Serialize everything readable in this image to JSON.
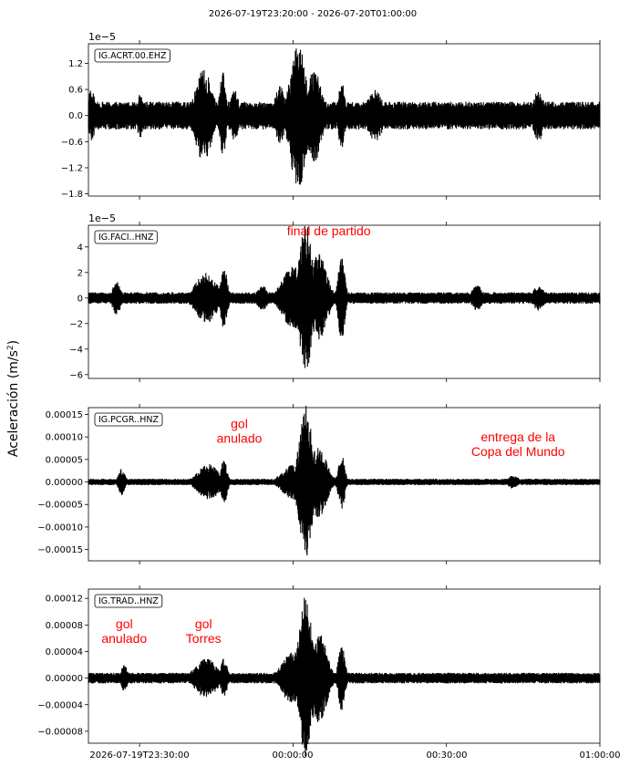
{
  "title": "2026-07-19T23:20:00  -  2026-07-20T01:00:00",
  "ylabel_main": "Aceleración (m/s",
  "ylabel_sup": "2",
  "ylabel_close": ")",
  "x_tick_labels": [
    "2026-07-19T23:30:00",
    "00:00:00",
    "00:30:00",
    "01:00:00"
  ],
  "chart_data": [
    {
      "type": "line",
      "station": "IG.ACRT.00.EHZ",
      "exponent_label": "1e−5",
      "ylim": [
        -1.85,
        1.65
      ],
      "yticks": [
        1.2,
        0.6,
        0.0,
        -0.6,
        -1.2,
        -1.8
      ],
      "ytick_labels": [
        "1.2",
        "0.6",
        "0.0",
        "−0.6",
        "−1.2",
        "−1.8"
      ],
      "xlim_minutes": [
        0,
        100
      ],
      "xticks_minutes": [
        10,
        40,
        70,
        100
      ],
      "baseline_amplitude": 0.32,
      "bursts": [
        {
          "t": 0.5,
          "peak": 0.6,
          "width": 0.8
        },
        {
          "t": 10.2,
          "peak": 0.5,
          "width": 0.8
        },
        {
          "t": 22.5,
          "peak": 1.05,
          "width": 1.6
        },
        {
          "t": 26.3,
          "peak": 1.0,
          "width": 0.6
        },
        {
          "t": 28.5,
          "peak": 0.6,
          "width": 0.8
        },
        {
          "t": 37.5,
          "peak": 0.7,
          "width": 1.0
        },
        {
          "t": 41.0,
          "peak": 1.7,
          "width": 1.5
        },
        {
          "t": 44.0,
          "peak": 1.1,
          "width": 1.5
        },
        {
          "t": 49.5,
          "peak": 0.8,
          "width": 0.6
        },
        {
          "t": 56.0,
          "peak": 0.6,
          "width": 1.5
        },
        {
          "t": 88.0,
          "peak": 0.6,
          "width": 1.0
        }
      ],
      "annotations": []
    },
    {
      "type": "line",
      "station": "IG.FACI..HNZ",
      "exponent_label": "1e−5",
      "ylim": [
        -6.3,
        5.7
      ],
      "yticks": [
        4,
        2,
        0,
        -2,
        -4,
        -6
      ],
      "ytick_labels": [
        "4",
        "2",
        "0",
        "−2",
        "−4",
        "−6"
      ],
      "xlim_minutes": [
        0,
        100
      ],
      "xticks_minutes": [
        10,
        40,
        70,
        100
      ],
      "baseline_amplitude": 0.45,
      "bursts": [
        {
          "t": 5.5,
          "peak": 1.3,
          "width": 0.8
        },
        {
          "t": 23.0,
          "peak": 2.0,
          "width": 2.0
        },
        {
          "t": 26.5,
          "peak": 2.5,
          "width": 0.6
        },
        {
          "t": 34.0,
          "peak": 1.0,
          "width": 1.0
        },
        {
          "t": 40.0,
          "peak": 2.5,
          "width": 2.0
        },
        {
          "t": 42.5,
          "peak": 5.8,
          "width": 1.2
        },
        {
          "t": 45.0,
          "peak": 3.5,
          "width": 1.5
        },
        {
          "t": 49.5,
          "peak": 3.5,
          "width": 0.6
        },
        {
          "t": 76.0,
          "peak": 1.0,
          "width": 1.0
        },
        {
          "t": 88.0,
          "peak": 1.0,
          "width": 1.0
        }
      ],
      "annotations": [
        {
          "lines": [
            "final de partido"
          ],
          "t": 47.0,
          "y": 4.9
        }
      ]
    },
    {
      "type": "line",
      "station": "IG.PCGR..HNZ",
      "exponent_label": "",
      "ylim": [
        -0.000175,
        0.000165
      ],
      "yticks": [
        0.00015,
        0.0001,
        5e-05,
        0.0,
        -5e-05,
        -0.0001,
        -0.00015
      ],
      "ytick_labels": [
        "0.00015",
        "0.00010",
        "0.00005",
        "0.00000",
        "−0.00005",
        "−0.00010",
        "−0.00015"
      ],
      "xlim_minutes": [
        0,
        100
      ],
      "xticks_minutes": [
        10,
        40,
        70,
        100
      ],
      "baseline_amplitude": 7e-06,
      "bursts": [
        {
          "t": 6.5,
          "peak": 3e-05,
          "width": 0.6
        },
        {
          "t": 23.5,
          "peak": 4e-05,
          "width": 2.0
        },
        {
          "t": 26.5,
          "peak": 5e-05,
          "width": 0.6
        },
        {
          "t": 40.0,
          "peak": 4e-05,
          "width": 2.0
        },
        {
          "t": 42.5,
          "peak": 0.00017,
          "width": 1.2
        },
        {
          "t": 45.0,
          "peak": 8e-05,
          "width": 1.5
        },
        {
          "t": 49.5,
          "peak": 6e-05,
          "width": 0.6
        },
        {
          "t": 83.0,
          "peak": 1.5e-05,
          "width": 1.0
        }
      ],
      "annotations": [
        {
          "lines": [
            "gol",
            "anulado"
          ],
          "t": 29.5,
          "y": 0.000119
        },
        {
          "lines": [
            "entrega de la",
            "Copa del Mundo"
          ],
          "t": 84.0,
          "y": 9e-05
        }
      ]
    },
    {
      "type": "line",
      "station": "IG.TRAD..HNZ",
      "exponent_label": "",
      "ylim": [
        -9.8e-05,
        0.000134
      ],
      "yticks": [
        0.00012,
        8e-05,
        4e-05,
        0.0,
        -4e-05,
        -8e-05
      ],
      "ytick_labels": [
        "0.00012",
        "0.00008",
        "0.00004",
        "0.00000",
        "−0.00004",
        "−0.00008"
      ],
      "xlim_minutes": [
        0,
        100
      ],
      "xticks_minutes": [
        10,
        40,
        70,
        100
      ],
      "baseline_amplitude": 8e-06,
      "bursts": [
        {
          "t": 7.0,
          "peak": 2e-05,
          "width": 0.6
        },
        {
          "t": 23.0,
          "peak": 3e-05,
          "width": 2.0
        },
        {
          "t": 26.5,
          "peak": 3e-05,
          "width": 0.6
        },
        {
          "t": 40.0,
          "peak": 4e-05,
          "width": 2.0
        },
        {
          "t": 42.5,
          "peak": 0.000125,
          "width": 1.2
        },
        {
          "t": 45.0,
          "peak": 7e-05,
          "width": 1.5
        },
        {
          "t": 49.5,
          "peak": 5e-05,
          "width": 0.6
        }
      ],
      "annotations": [
        {
          "lines": [
            "gol",
            "anulado"
          ],
          "t": 7.0,
          "y": 7.5e-05
        },
        {
          "lines": [
            "gol",
            "Torres"
          ],
          "t": 22.5,
          "y": 7.5e-05
        }
      ]
    }
  ]
}
